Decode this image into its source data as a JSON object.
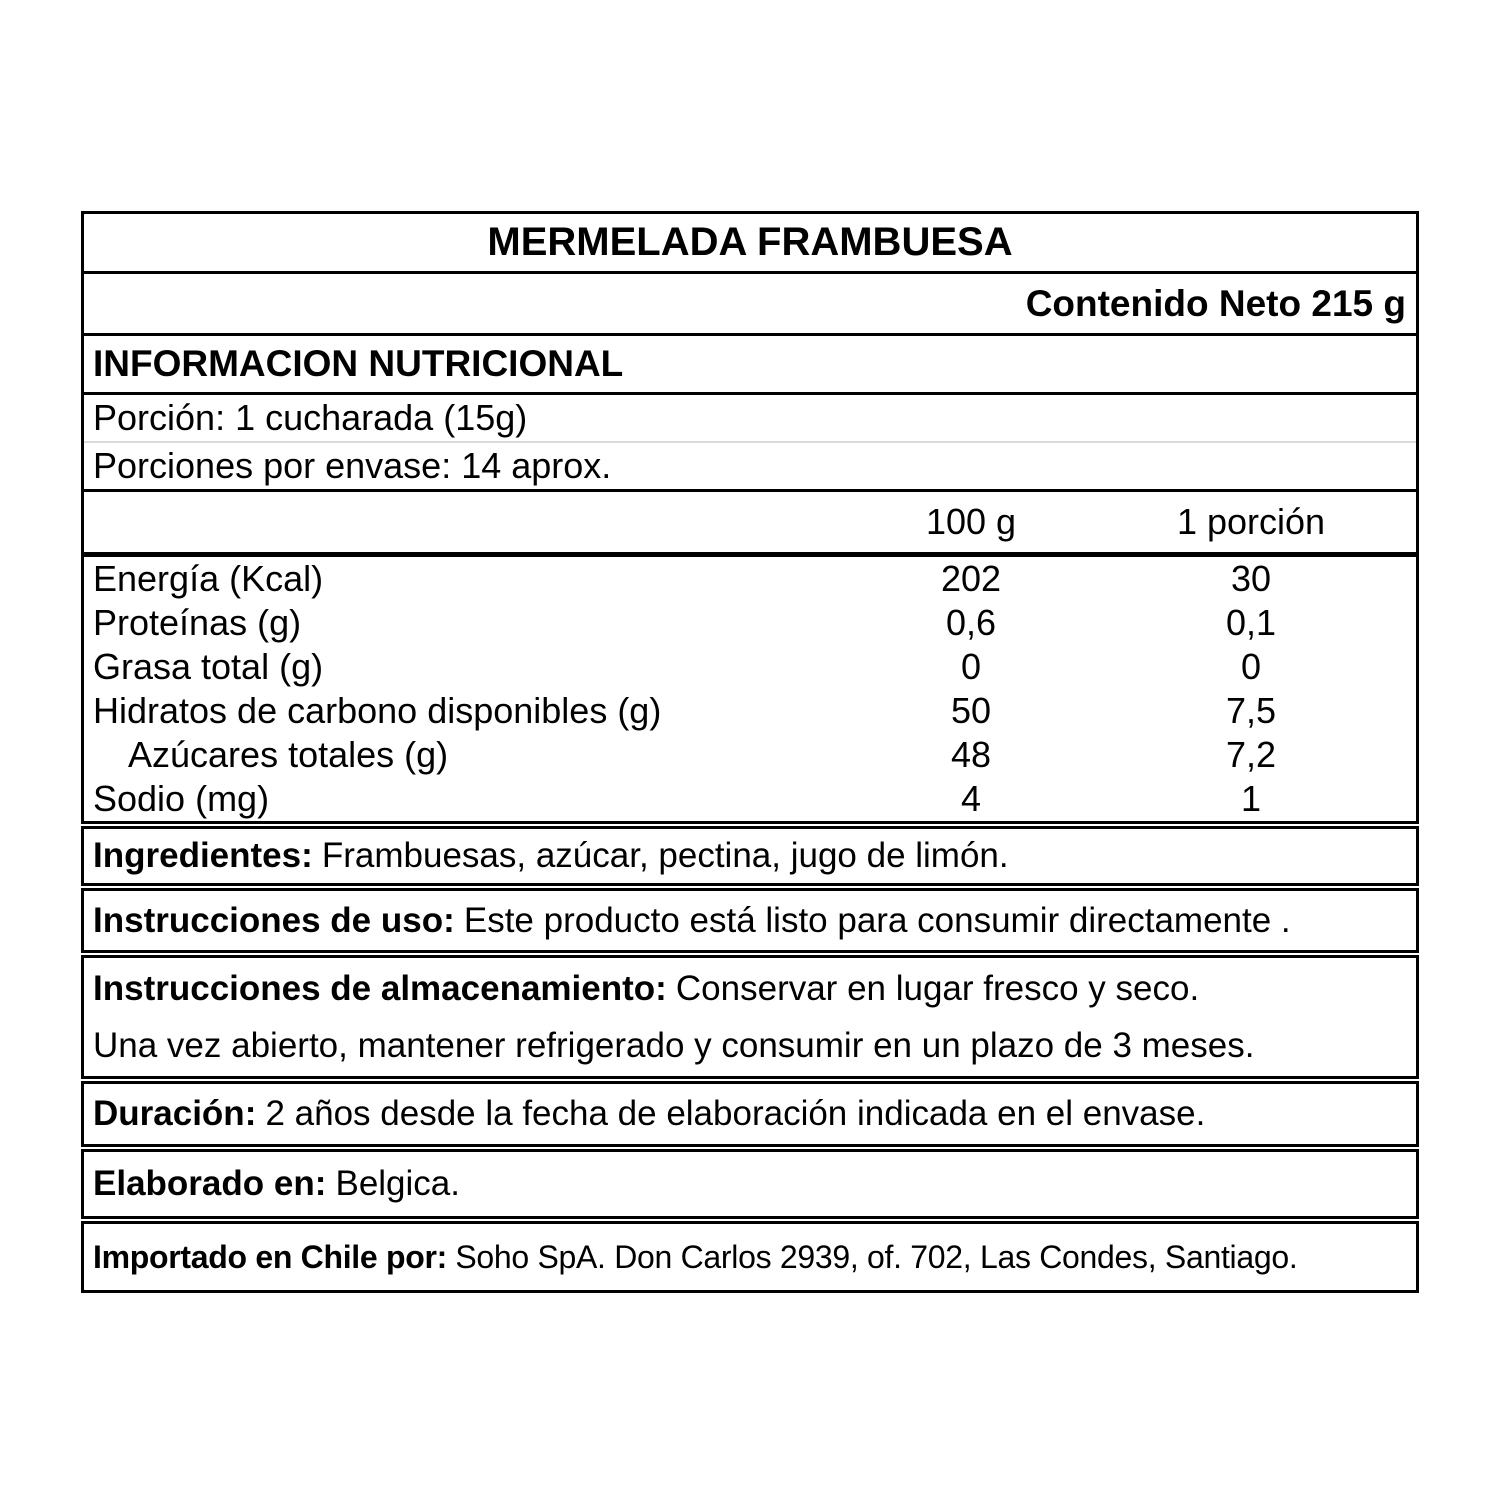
{
  "product": {
    "title": "MERMELADA FRAMBUESA",
    "net_content": "Contenido Neto 215 g"
  },
  "nutrition": {
    "header": "INFORMACION NUTRICIONAL",
    "serving_size": "Porción: 1 cucharada (15g)",
    "servings_per_container": "Porciones por envase: 14 aprox.",
    "columns": {
      "per_100g": "100 g",
      "per_serving": "1 porción"
    },
    "rows": [
      {
        "label": "Energía (Kcal)",
        "per_100g": "202",
        "per_serving": "30"
      },
      {
        "label": "Proteínas (g)",
        "per_100g": "0,6",
        "per_serving": "0,1"
      },
      {
        "label": "Grasa total (g)",
        "per_100g": "0",
        "per_serving": "0"
      },
      {
        "label": "Hidratos de carbono disponibles (g)",
        "per_100g": "50",
        "per_serving": "7,5"
      },
      {
        "label": "Azúcares totales (g)",
        "per_100g": "48",
        "per_serving": "7,2"
      },
      {
        "label": "Sodio (mg)",
        "per_100g": "4",
        "per_serving": "1"
      }
    ]
  },
  "sections": [
    {
      "label": "Ingredientes:",
      "text": "Frambuesas, azúcar, pectina, jugo de limón."
    },
    {
      "label": "Instrucciones de uso:",
      "text": "Este producto está listo para consumir directamente ."
    },
    {
      "label": "Instrucciones de almacenamiento:",
      "text": "Conservar en lugar fresco y seco.",
      "line2": "Una vez abierto, mantener refrigerado y consumir en un plazo de 3 meses."
    },
    {
      "label": "Duración:",
      "text": "2 años desde la fecha de elaboración indicada en el envase."
    },
    {
      "label": "Elaborado en:",
      "text": "Belgica."
    },
    {
      "label": "Importado en Chile por:",
      "text": "Soho SpA. Don Carlos 2939, of. 702, Las Condes, Santiago."
    }
  ],
  "colors": {
    "border": "#000000",
    "light_divider": "#d9d9d9",
    "background": "#ffffff",
    "text": "#000000"
  }
}
